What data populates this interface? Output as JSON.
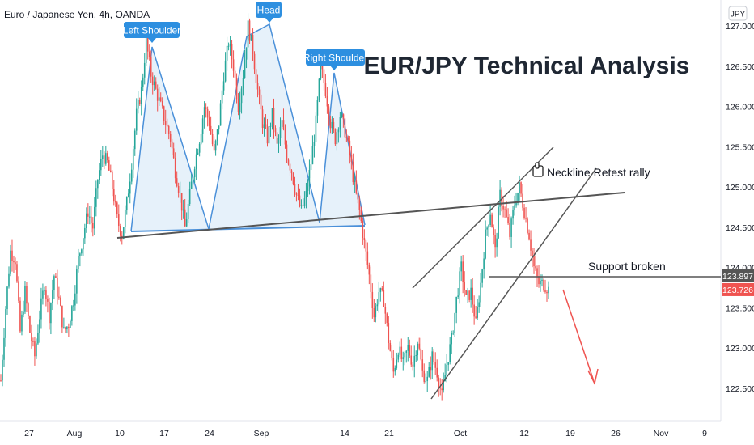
{
  "symbol_title": "Euro / Japanese Yen, 4h, OANDA",
  "currency": "JPY",
  "main_title": "EUR/JPY Technical Analysis",
  "annotations": {
    "left_shoulder": "Left Shoulder",
    "head": "Head",
    "right_shoulder": "Right Shoulder",
    "neckline_retest": "Neckline Retest rally",
    "support_broken": "Support broken"
  },
  "colors": {
    "up": "#26a69a",
    "down": "#ef5350",
    "pattern_line": "#4a90d9",
    "pattern_fill": "#d6e8f7",
    "label_bg": "#2d8fe0",
    "trend_line": "#555555",
    "price_badge_support": "#555555",
    "price_badge_last": "#ef5350",
    "arrow": "#ef5350"
  },
  "chart_data": {
    "type": "candlestick",
    "title": "Euro / Japanese Yen, 4h, OANDA",
    "ylim": [
      122.25,
      127.3
    ],
    "y_ticks": [
      "127.000",
      "126.500",
      "126.000",
      "125.500",
      "125.000",
      "124.500",
      "124.000",
      "123.500",
      "123.000",
      "122.500"
    ],
    "y_tick_values": [
      127.0,
      126.5,
      126.0,
      125.5,
      125.0,
      124.5,
      124.0,
      123.5,
      123.0,
      122.5
    ],
    "x_ticks": [
      "27",
      "Aug",
      "10",
      "17",
      "24",
      "Sep",
      "14",
      "21",
      "Oct",
      "12",
      "19",
      "26",
      "Nov",
      "9"
    ],
    "support_price": "123.897",
    "last_price": "123.726",
    "support_value": 123.897,
    "last_value": 123.726,
    "price_path": [
      [
        0,
        122.6
      ],
      [
        3,
        123.5
      ],
      [
        6,
        124.2
      ],
      [
        9,
        124.1
      ],
      [
        12,
        123.2
      ],
      [
        15,
        123.7
      ],
      [
        18,
        123.2
      ],
      [
        21,
        122.9
      ],
      [
        24,
        123.4
      ],
      [
        27,
        123.8
      ],
      [
        30,
        123.4
      ],
      [
        33,
        123.9
      ],
      [
        36,
        123.6
      ],
      [
        39,
        123.2
      ],
      [
        42,
        123.3
      ],
      [
        45,
        123.6
      ],
      [
        48,
        124.1
      ],
      [
        51,
        124.4
      ],
      [
        54,
        124.7
      ],
      [
        57,
        124.5
      ],
      [
        60,
        125.1
      ],
      [
        63,
        125.4
      ],
      [
        66,
        125.3
      ],
      [
        69,
        125.0
      ],
      [
        72,
        124.6
      ],
      [
        75,
        124.4
      ],
      [
        78,
        124.8
      ],
      [
        81,
        125.3
      ],
      [
        84,
        125.9
      ],
      [
        87,
        126.2
      ],
      [
        90,
        126.8
      ],
      [
        93,
        126.4
      ],
      [
        96,
        126.2
      ],
      [
        99,
        126.0
      ],
      [
        102,
        125.8
      ],
      [
        105,
        125.6
      ],
      [
        108,
        125.2
      ],
      [
        111,
        124.9
      ],
      [
        114,
        124.5
      ],
      [
        117,
        124.9
      ],
      [
        120,
        125.3
      ],
      [
        123,
        125.6
      ],
      [
        126,
        126.0
      ],
      [
        129,
        125.8
      ],
      [
        132,
        125.4
      ],
      [
        135,
        125.8
      ],
      [
        138,
        126.4
      ],
      [
        141,
        126.8
      ],
      [
        144,
        126.5
      ],
      [
        147,
        126.0
      ],
      [
        150,
        126.4
      ],
      [
        153,
        127.0
      ],
      [
        156,
        126.7
      ],
      [
        159,
        126.2
      ],
      [
        162,
        125.8
      ],
      [
        165,
        125.6
      ],
      [
        168,
        125.9
      ],
      [
        171,
        125.5
      ],
      [
        174,
        125.8
      ],
      [
        177,
        125.4
      ],
      [
        180,
        125.2
      ],
      [
        183,
        124.9
      ],
      [
        186,
        124.7
      ],
      [
        189,
        124.9
      ],
      [
        192,
        125.3
      ],
      [
        195,
        125.8
      ],
      [
        198,
        126.5
      ],
      [
        201,
        126.2
      ],
      [
        204,
        125.8
      ],
      [
        207,
        125.6
      ],
      [
        210,
        125.9
      ],
      [
        213,
        125.7
      ],
      [
        216,
        125.4
      ],
      [
        219,
        125.0
      ],
      [
        222,
        124.7
      ],
      [
        225,
        124.3
      ],
      [
        228,
        123.9
      ],
      [
        231,
        123.4
      ],
      [
        234,
        123.7
      ],
      [
        237,
        123.6
      ],
      [
        240,
        123.1
      ],
      [
        243,
        122.7
      ],
      [
        246,
        123.0
      ],
      [
        249,
        122.8
      ],
      [
        252,
        123.0
      ],
      [
        255,
        122.8
      ],
      [
        258,
        123.1
      ],
      [
        261,
        122.7
      ],
      [
        264,
        122.6
      ],
      [
        267,
        122.9
      ],
      [
        270,
        122.7
      ],
      [
        273,
        122.4
      ],
      [
        276,
        122.8
      ],
      [
        279,
        123.1
      ],
      [
        282,
        123.6
      ],
      [
        285,
        124.0
      ],
      [
        288,
        123.6
      ],
      [
        291,
        123.7
      ],
      [
        294,
        123.3
      ],
      [
        297,
        123.8
      ],
      [
        300,
        124.4
      ],
      [
        303,
        124.7
      ],
      [
        306,
        124.2
      ],
      [
        309,
        124.9
      ],
      [
        312,
        124.7
      ],
      [
        315,
        124.4
      ],
      [
        318,
        124.8
      ],
      [
        321,
        125.0
      ],
      [
        324,
        124.7
      ],
      [
        327,
        124.4
      ],
      [
        330,
        124.0
      ],
      [
        333,
        123.8
      ],
      [
        336,
        123.8
      ],
      [
        339,
        123.73
      ]
    ]
  }
}
